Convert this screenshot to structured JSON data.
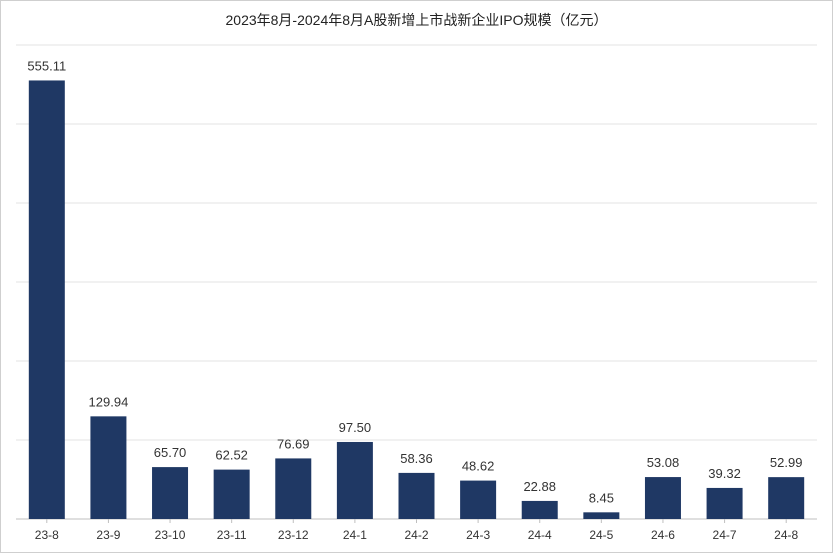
{
  "chart_data": {
    "type": "bar",
    "title": "2023年8月-2024年8月A股新增上市战新企业IPO规模（亿元）",
    "xlabel": "",
    "ylabel": "",
    "categories": [
      "23-8",
      "23-9",
      "23-10",
      "23-11",
      "23-12",
      "24-1",
      "24-2",
      "24-3",
      "24-4",
      "24-5",
      "24-6",
      "24-7",
      "24-8"
    ],
    "values": [
      555.11,
      129.94,
      65.7,
      62.52,
      76.69,
      97.5,
      58.36,
      48.62,
      22.88,
      8.45,
      53.08,
      39.32,
      52.99
    ],
    "value_labels": [
      "555.11",
      "129.94",
      "65.70",
      "62.52",
      "76.69",
      "97.50",
      "58.36",
      "48.62",
      "22.88",
      "8.45",
      "53.08",
      "39.32",
      "52.99"
    ],
    "ylim": [
      0,
      600
    ],
    "grid": true,
    "legend": "none",
    "bar_color": "#1f3864"
  }
}
